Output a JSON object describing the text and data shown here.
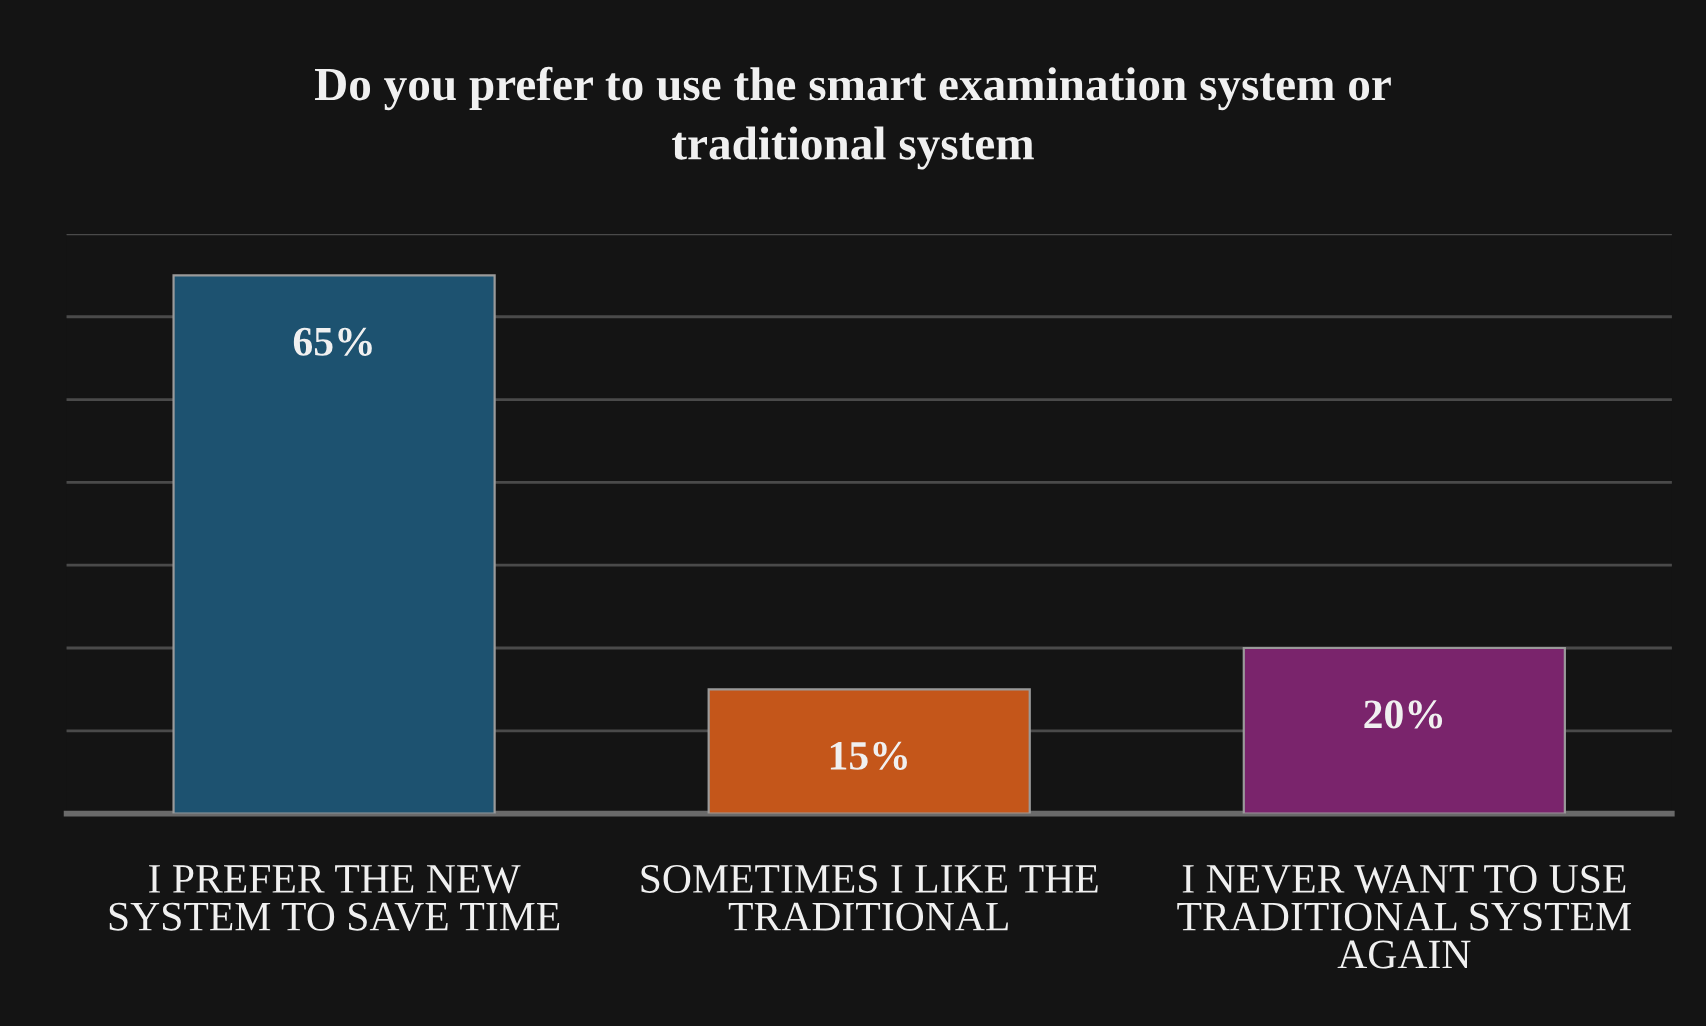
{
  "chart_data": {
    "type": "bar",
    "title": "Do you prefer to use the smart examination system or\ntraditional system",
    "categories": [
      "I PREFER THE NEW\nSYSTEM TO SAVE TIME",
      "SOMETIMES I LIKE THE\nTRADITIONAL",
      "I NEVER WANT TO USE\nTRADITIONAL SYSTEM\nAGAIN"
    ],
    "values": [
      65,
      15,
      20
    ],
    "colors": [
      "#1d5270",
      "#c4561a",
      "#7a246c"
    ],
    "value_labels": [
      "65%",
      "15%",
      "20%"
    ],
    "ylim": [
      0,
      70
    ],
    "yticks": [
      {
        "value": 0,
        "label": null
      },
      {
        "value": 10,
        "label": null
      },
      {
        "value": 20,
        "label": null
      },
      {
        "value": 30,
        "label": null
      },
      {
        "value": 40,
        "label": null
      },
      {
        "value": 50,
        "label": null
      },
      {
        "value": 60,
        "label": null
      },
      {
        "value": 70,
        "label": null
      }
    ],
    "tick_labels": "x",
    "grid": "y"
  }
}
